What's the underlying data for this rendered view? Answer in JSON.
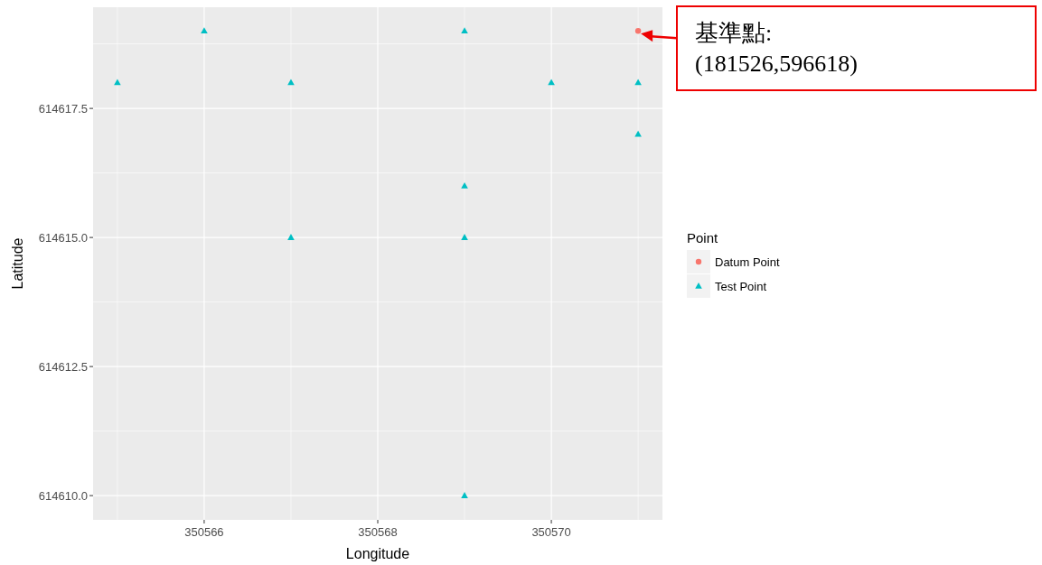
{
  "chart_data": {
    "type": "scatter",
    "xlabel": "Longitude",
    "ylabel": "Latitude",
    "legend_title": "Point",
    "xlim": [
      350564.72,
      350571.28
    ],
    "xticks": [
      350566,
      350568,
      350570
    ],
    "ylim": [
      614609.53,
      614619.46
    ],
    "yticks": [
      {
        "value": 614610,
        "label": "614610.0"
      },
      {
        "value": 614612.5,
        "label": "614612.5"
      },
      {
        "value": 614615,
        "label": "614615.0"
      },
      {
        "value": 614617.5,
        "label": "614617.5"
      }
    ],
    "grid": true,
    "legend": "right",
    "series": [
      {
        "name": "Datum Point",
        "color": "#f8766d",
        "marker": "circle",
        "x": [
          350571
        ],
        "values": [
          614619
        ]
      },
      {
        "name": "Test Point",
        "color": "#00bfc4",
        "marker": "triangle",
        "x": [
          350565,
          350566,
          350567,
          350567,
          350569,
          350569,
          350569,
          350569,
          350570,
          350571,
          350571
        ],
        "values": [
          614618,
          614619,
          614618,
          614615,
          614619,
          614616,
          614615,
          614610,
          614618,
          614618,
          614617
        ]
      }
    ],
    "annotations": [
      {
        "text": "基準點:\n(181526,596618)",
        "x": 350571,
        "y": 614619
      }
    ]
  }
}
